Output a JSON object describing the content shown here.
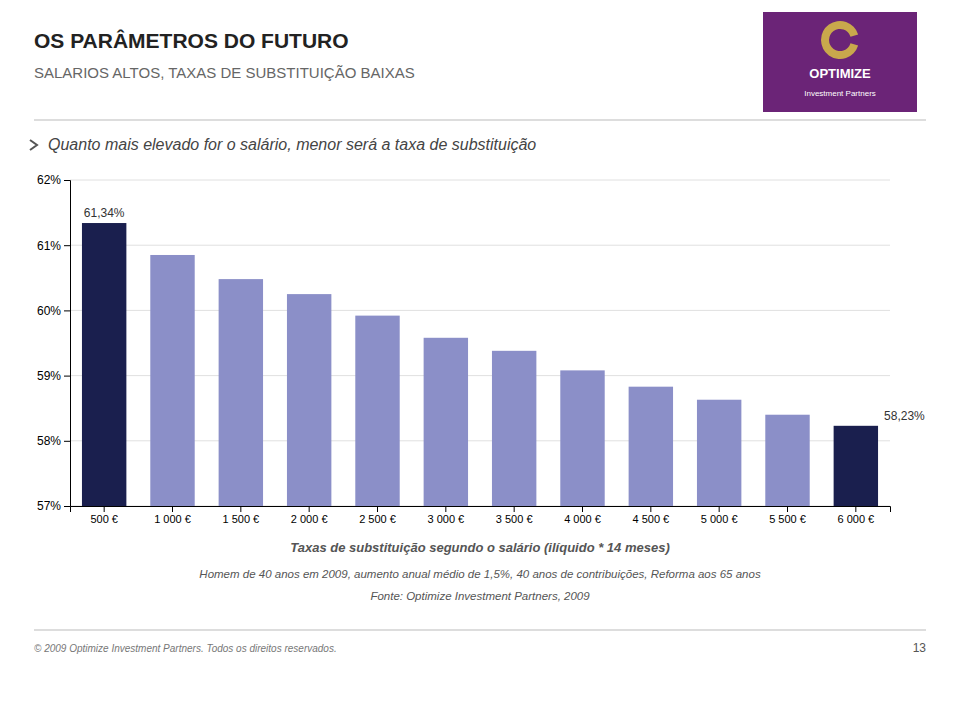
{
  "chart_data": {
    "type": "bar",
    "title": "OS PARÂMETROS DO FUTURO",
    "subtitle": "SALARIOS ALTOS, TAXAS DE SUBSTITUIÇÃO BAIXAS",
    "logo": [
      "OPTIMIZE",
      "Investment Partners"
    ],
    "note": "Quanto mais elevado for o salário, menor será a taxa de substituição",
    "caption": "Taxas de substituição segundo o salário (ilíquido * 14 meses)",
    "caption_lines": [
      "Homem de 40 anos em 2009, aumento anual médio de 1,5%, 40 anos de contribuições, Reforma aos 65 anos",
      "Fonte: Optimize Investment Partners, 2009"
    ],
    "footer": "© 2009 Optimize Investment Partners. Todos os direitos reservados.",
    "page_number": "13",
    "categories": [
      "500 €",
      "1 000 €",
      "1 500 €",
      "2 000 €",
      "2 500 €",
      "3 000 €",
      "3 500 €",
      "4 000 €",
      "4 500 €",
      "5 000 €",
      "5 500 €",
      "6 000 €"
    ],
    "values": [
      61.34,
      60.85,
      60.48,
      60.25,
      59.92,
      59.58,
      59.38,
      59.08,
      58.83,
      58.63,
      58.4,
      58.23
    ],
    "colors": [
      "#1a1f4e",
      "#8b8fc8",
      "#8b8fc8",
      "#8b8fc8",
      "#8b8fc8",
      "#8b8fc8",
      "#8b8fc8",
      "#8b8fc8",
      "#8b8fc8",
      "#8b8fc8",
      "#8b8fc8",
      "#1a1f4e"
    ],
    "data_labels": true,
    "value_labels": [
      "61,34%",
      null,
      null,
      null,
      null,
      null,
      null,
      null,
      null,
      null,
      null,
      "58,23%"
    ],
    "ylim": [
      57.0,
      62.0
    ],
    "yticks": [
      {
        "value": 57,
        "label": "57%"
      },
      {
        "value": 58,
        "label": "58%"
      },
      {
        "value": 59,
        "label": "59%"
      },
      {
        "value": 60,
        "label": "60%"
      },
      {
        "value": 61,
        "label": "61%"
      },
      {
        "value": 62,
        "label": "62%"
      }
    ],
    "grid": true
  }
}
